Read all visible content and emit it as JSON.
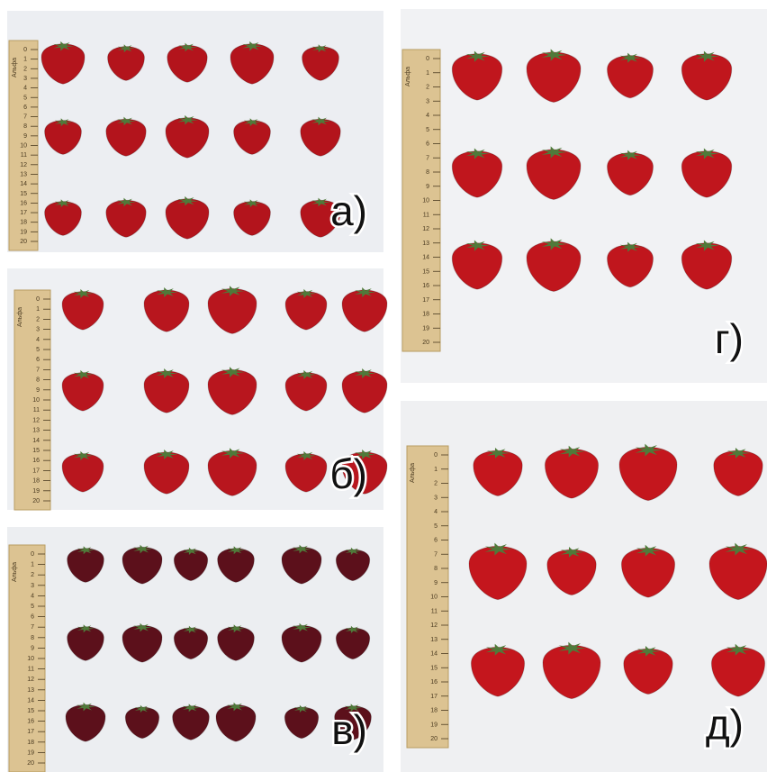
{
  "panels": [
    {
      "label": "а)"
    },
    {
      "label": "б)"
    },
    {
      "label": "в)"
    },
    {
      "label": "г)"
    },
    {
      "label": "д)"
    }
  ],
  "ruler": {
    "brand": "Альфа",
    "marks": [
      0,
      1,
      2,
      3,
      4,
      5,
      6,
      7,
      8,
      9,
      10,
      11,
      12,
      13,
      14,
      15,
      16,
      17,
      18,
      19,
      20
    ]
  }
}
